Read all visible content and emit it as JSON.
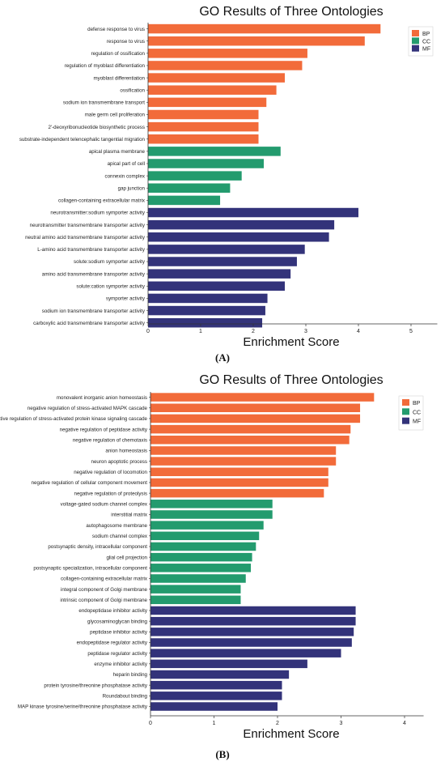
{
  "colors": {
    "BP": "#F26B3A",
    "CC": "#239B6E",
    "MF": "#33337A"
  },
  "chart_data": [
    {
      "type": "bar",
      "orientation": "horizontal",
      "title": "GO Results of Three Ontologies",
      "xlabel": "Enrichment Score",
      "panel_label": "(A)",
      "xlim": [
        0,
        5.5
      ],
      "xticks": [
        0,
        1,
        2,
        3,
        4,
        5
      ],
      "legend": {
        "position": "top-right",
        "entries": [
          "BP",
          "CC",
          "MF"
        ]
      },
      "grid": false,
      "bars": [
        {
          "label": "defense response to virus",
          "value": 4.42,
          "group": "BP"
        },
        {
          "label": "response to virus",
          "value": 4.12,
          "group": "BP"
        },
        {
          "label": "regulation of ossification",
          "value": 3.03,
          "group": "BP"
        },
        {
          "label": "regulation of myoblast differentiation",
          "value": 2.93,
          "group": "BP"
        },
        {
          "label": "myoblast differentiation",
          "value": 2.6,
          "group": "BP"
        },
        {
          "label": "ossification",
          "value": 2.44,
          "group": "BP"
        },
        {
          "label": "sodium ion transmembrane transport",
          "value": 2.25,
          "group": "BP"
        },
        {
          "label": "male germ cell proliferation",
          "value": 2.1,
          "group": "BP"
        },
        {
          "label": "2'-deoxyribonucleotide biosynthetic process",
          "value": 2.1,
          "group": "BP"
        },
        {
          "label": "substrate-independent telencephalic tangential migration",
          "value": 2.1,
          "group": "BP"
        },
        {
          "label": "apical plasma membrane",
          "value": 2.52,
          "group": "CC"
        },
        {
          "label": "apical part of cell",
          "value": 2.2,
          "group": "CC"
        },
        {
          "label": "connexin complex",
          "value": 1.78,
          "group": "CC"
        },
        {
          "label": "gap junction",
          "value": 1.56,
          "group": "CC"
        },
        {
          "label": "collagen-containing extracellular matrix",
          "value": 1.37,
          "group": "CC"
        },
        {
          "label": "neurotransmitter:sodium symporter activity",
          "value": 4.0,
          "group": "MF"
        },
        {
          "label": "neurotransmitter transmembrane transporter activity",
          "value": 3.54,
          "group": "MF"
        },
        {
          "label": "neutral amino acid transmembrane transporter activity",
          "value": 3.44,
          "group": "MF"
        },
        {
          "label": "L-amino acid transmembrane transporter activity",
          "value": 2.98,
          "group": "MF"
        },
        {
          "label": "solute:sodium symporter activity",
          "value": 2.83,
          "group": "MF"
        },
        {
          "label": "amino acid transmembrane transporter activity",
          "value": 2.71,
          "group": "MF"
        },
        {
          "label": "solute:cation symporter activity",
          "value": 2.6,
          "group": "MF"
        },
        {
          "label": "symporter activity",
          "value": 2.27,
          "group": "MF"
        },
        {
          "label": "sodium ion transmembrane transporter activity",
          "value": 2.23,
          "group": "MF"
        },
        {
          "label": "carboxylic acid transmembrane transporter activity",
          "value": 2.17,
          "group": "MF"
        }
      ]
    },
    {
      "type": "bar",
      "orientation": "horizontal",
      "title": "GO Results of Three Ontologies",
      "xlabel": "Enrichment Score",
      "panel_label": "(B)",
      "xlim": [
        0,
        4.3
      ],
      "xticks": [
        0,
        1,
        2,
        3,
        4
      ],
      "legend": {
        "position": "top-right",
        "entries": [
          "BP",
          "CC",
          "MF"
        ]
      },
      "grid": false,
      "bars": [
        {
          "label": "monovalent inorganic anion homeostasis",
          "value": 3.52,
          "group": "BP"
        },
        {
          "label": "negative regulation of stress-activated MAPK cascade",
          "value": 3.3,
          "group": "BP"
        },
        {
          "label": "negative regulation of stress-activated protein kinase signaling cascade",
          "value": 3.3,
          "group": "BP"
        },
        {
          "label": "negative regulation of peptidase activity",
          "value": 3.15,
          "group": "BP"
        },
        {
          "label": "negative regulation of chemotaxis",
          "value": 3.13,
          "group": "BP"
        },
        {
          "label": "anion homeostasis",
          "value": 2.92,
          "group": "BP"
        },
        {
          "label": "neuron apoptotic process",
          "value": 2.92,
          "group": "BP"
        },
        {
          "label": "negative regulation of locomotion",
          "value": 2.8,
          "group": "BP"
        },
        {
          "label": "negative regulation of cellular component movement",
          "value": 2.8,
          "group": "BP"
        },
        {
          "label": "negative regulation of proteolysis",
          "value": 2.73,
          "group": "BP"
        },
        {
          "label": "voltage-gated sodium channel complex",
          "value": 1.92,
          "group": "CC"
        },
        {
          "label": "interstitial matrix",
          "value": 1.92,
          "group": "CC"
        },
        {
          "label": "autophagosome membrane",
          "value": 1.78,
          "group": "CC"
        },
        {
          "label": "sodium channel complex",
          "value": 1.71,
          "group": "CC"
        },
        {
          "label": "postsynaptic density, intracellular component",
          "value": 1.66,
          "group": "CC"
        },
        {
          "label": "glial cell projection",
          "value": 1.6,
          "group": "CC"
        },
        {
          "label": "postsynaptic specialization, intracellular component",
          "value": 1.58,
          "group": "CC"
        },
        {
          "label": "collagen-containing extracellular matrix",
          "value": 1.5,
          "group": "CC"
        },
        {
          "label": "integral component of Golgi membrane",
          "value": 1.42,
          "group": "CC"
        },
        {
          "label": "intrinsic component of Golgi membrane",
          "value": 1.42,
          "group": "CC"
        },
        {
          "label": "endopeptidase inhibitor activity",
          "value": 3.23,
          "group": "MF"
        },
        {
          "label": "glycosaminoglycan binding",
          "value": 3.23,
          "group": "MF"
        },
        {
          "label": "peptidase inhibitor activity",
          "value": 3.2,
          "group": "MF"
        },
        {
          "label": "endopeptidase regulator activity",
          "value": 3.17,
          "group": "MF"
        },
        {
          "label": "peptidase regulator activity",
          "value": 3.0,
          "group": "MF"
        },
        {
          "label": "enzyme inhibitor activity",
          "value": 2.47,
          "group": "MF"
        },
        {
          "label": "heparin binding",
          "value": 2.18,
          "group": "MF"
        },
        {
          "label": "protein tyrosine/threonine phosphatase activity",
          "value": 2.07,
          "group": "MF"
        },
        {
          "label": "Roundabout binding",
          "value": 2.07,
          "group": "MF"
        },
        {
          "label": "MAP kinase tyrosine/serine/threonine phosphatase activity",
          "value": 2.0,
          "group": "MF"
        }
      ]
    }
  ]
}
